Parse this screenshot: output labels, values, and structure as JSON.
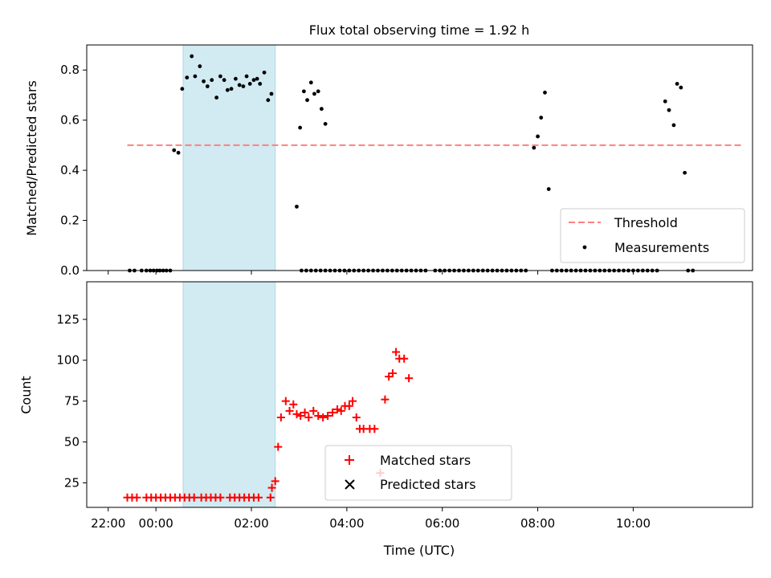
{
  "figure": {
    "title": "Flux total observing time = 1.92 h",
    "xlabel": "Time (UTC)",
    "xlim": [
      -1.45,
      12.5
    ],
    "xticks": [
      {
        "v": -1,
        "label": "22:00"
      },
      {
        "v": 0,
        "label": "00:00"
      },
      {
        "v": 2,
        "label": "02:00"
      },
      {
        "v": 4,
        "label": "04:00"
      },
      {
        "v": 6,
        "label": "06:00"
      },
      {
        "v": 8,
        "label": "08:00"
      },
      {
        "v": 10,
        "label": "10:00"
      }
    ],
    "shaded_span": [
      0.57,
      2.5
    ],
    "colors": {
      "threshold": "#ff7f7f",
      "span": "#add8e6",
      "matched": "#ff0000",
      "predicted": "#000000",
      "measurements": "#000000"
    }
  },
  "chart_data": [
    {
      "type": "scatter",
      "ylabel": "Matched/Predicted stars",
      "ylim": [
        0,
        0.9
      ],
      "yticks": [
        {
          "v": 0,
          "label": "0.0"
        },
        {
          "v": 0.2,
          "label": "0.2"
        },
        {
          "v": 0.4,
          "label": "0.4"
        },
        {
          "v": 0.6,
          "label": "0.6"
        },
        {
          "v": 0.8,
          "label": "0.8"
        }
      ],
      "threshold": {
        "y": 0.5,
        "x": [
          -0.6,
          12.3
        ]
      },
      "legend": {
        "position": "lower right",
        "entries": [
          "Threshold",
          "Measurements"
        ]
      },
      "series": [
        {
          "name": "Measurements",
          "points": [
            [
              -0.55,
              0
            ],
            [
              -0.45,
              0
            ],
            [
              -0.3,
              0
            ],
            [
              -0.2,
              0
            ],
            [
              -0.12,
              0
            ],
            [
              -0.05,
              0
            ],
            [
              0.02,
              0
            ],
            [
              0.08,
              0
            ],
            [
              0.15,
              0
            ],
            [
              0.22,
              0
            ],
            [
              0.3,
              0
            ],
            [
              0.38,
              0.48
            ],
            [
              0.47,
              0.47
            ],
            [
              0.55,
              0.725
            ],
            [
              0.65,
              0.77
            ],
            [
              0.75,
              0.855
            ],
            [
              0.82,
              0.775
            ],
            [
              0.92,
              0.815
            ],
            [
              1.0,
              0.755
            ],
            [
              1.08,
              0.735
            ],
            [
              1.17,
              0.76
            ],
            [
              1.27,
              0.69
            ],
            [
              1.35,
              0.775
            ],
            [
              1.43,
              0.76
            ],
            [
              1.5,
              0.72
            ],
            [
              1.58,
              0.725
            ],
            [
              1.67,
              0.765
            ],
            [
              1.75,
              0.74
            ],
            [
              1.83,
              0.735
            ],
            [
              1.9,
              0.775
            ],
            [
              1.97,
              0.745
            ],
            [
              2.05,
              0.76
            ],
            [
              2.12,
              0.765
            ],
            [
              2.18,
              0.745
            ],
            [
              2.27,
              0.79
            ],
            [
              2.35,
              0.68
            ],
            [
              2.42,
              0.705
            ],
            [
              2.95,
              0.255
            ],
            [
              3.02,
              0.57
            ],
            [
              3.1,
              0.715
            ],
            [
              3.17,
              0.68
            ],
            [
              3.25,
              0.75
            ],
            [
              3.32,
              0.705
            ],
            [
              3.4,
              0.715
            ],
            [
              3.47,
              0.645
            ],
            [
              3.55,
              0.585
            ],
            [
              3.05,
              0
            ],
            [
              3.15,
              0
            ],
            [
              3.25,
              0
            ],
            [
              3.35,
              0
            ],
            [
              3.45,
              0
            ],
            [
              3.55,
              0
            ],
            [
              3.65,
              0
            ],
            [
              3.75,
              0
            ],
            [
              3.85,
              0
            ],
            [
              3.95,
              0
            ],
            [
              4.05,
              0
            ],
            [
              4.15,
              0
            ],
            [
              4.25,
              0
            ],
            [
              4.35,
              0
            ],
            [
              4.45,
              0
            ],
            [
              4.55,
              0
            ],
            [
              4.65,
              0
            ],
            [
              4.75,
              0
            ],
            [
              4.85,
              0
            ],
            [
              4.95,
              0
            ],
            [
              5.05,
              0
            ],
            [
              5.15,
              0
            ],
            [
              5.25,
              0
            ],
            [
              5.35,
              0
            ],
            [
              5.45,
              0
            ],
            [
              5.55,
              0
            ],
            [
              5.65,
              0
            ],
            [
              5.85,
              0
            ],
            [
              5.95,
              0
            ],
            [
              6.05,
              0
            ],
            [
              6.15,
              0
            ],
            [
              6.25,
              0
            ],
            [
              6.35,
              0
            ],
            [
              6.45,
              0
            ],
            [
              6.55,
              0
            ],
            [
              6.65,
              0
            ],
            [
              6.75,
              0
            ],
            [
              6.85,
              0
            ],
            [
              6.95,
              0
            ],
            [
              7.05,
              0
            ],
            [
              7.15,
              0
            ],
            [
              7.25,
              0
            ],
            [
              7.35,
              0
            ],
            [
              7.45,
              0
            ],
            [
              7.55,
              0
            ],
            [
              7.65,
              0
            ],
            [
              7.75,
              0
            ],
            [
              7.92,
              0.49
            ],
            [
              8.0,
              0.535
            ],
            [
              8.07,
              0.61
            ],
            [
              8.15,
              0.71
            ],
            [
              8.23,
              0.325
            ],
            [
              8.3,
              0
            ],
            [
              8.4,
              0
            ],
            [
              8.5,
              0
            ],
            [
              8.6,
              0
            ],
            [
              8.7,
              0
            ],
            [
              8.8,
              0
            ],
            [
              8.9,
              0
            ],
            [
              9.0,
              0
            ],
            [
              9.1,
              0
            ],
            [
              9.2,
              0
            ],
            [
              9.3,
              0
            ],
            [
              9.4,
              0
            ],
            [
              9.5,
              0
            ],
            [
              9.6,
              0
            ],
            [
              9.7,
              0
            ],
            [
              9.8,
              0
            ],
            [
              9.9,
              0
            ],
            [
              10.0,
              0
            ],
            [
              10.1,
              0
            ],
            [
              10.2,
              0
            ],
            [
              10.3,
              0
            ],
            [
              10.4,
              0
            ],
            [
              10.5,
              0
            ],
            [
              10.67,
              0.675
            ],
            [
              10.75,
              0.64
            ],
            [
              10.85,
              0.58
            ],
            [
              10.92,
              0.745
            ],
            [
              11.0,
              0.73
            ],
            [
              11.08,
              0.39
            ],
            [
              11.15,
              0
            ],
            [
              11.25,
              0
            ]
          ]
        }
      ]
    },
    {
      "type": "scatter",
      "ylabel": "Count",
      "ylim": [
        10,
        148
      ],
      "yticks": [
        {
          "v": 25,
          "label": "25"
        },
        {
          "v": 50,
          "label": "50"
        },
        {
          "v": 75,
          "label": "75"
        },
        {
          "v": 100,
          "label": "100"
        },
        {
          "v": 125,
          "label": "125"
        }
      ],
      "legend": {
        "position": "lower center",
        "entries": [
          "Matched stars",
          "Predicted stars"
        ]
      },
      "series": [
        {
          "name": "Matched stars",
          "marker": "plus",
          "points": [
            [
              -0.6,
              16
            ],
            [
              -0.5,
              16
            ],
            [
              -0.4,
              16
            ],
            [
              -0.2,
              16
            ],
            [
              -0.1,
              16
            ],
            [
              0.0,
              16
            ],
            [
              0.1,
              16
            ],
            [
              0.2,
              16
            ],
            [
              0.3,
              16
            ],
            [
              0.4,
              16
            ],
            [
              0.5,
              16
            ],
            [
              0.6,
              16
            ],
            [
              0.7,
              16
            ],
            [
              0.8,
              16
            ],
            [
              0.95,
              16
            ],
            [
              1.05,
              16
            ],
            [
              1.15,
              16
            ],
            [
              1.25,
              16
            ],
            [
              1.35,
              16
            ],
            [
              1.55,
              16
            ],
            [
              1.65,
              16
            ],
            [
              1.75,
              16
            ],
            [
              1.85,
              16
            ],
            [
              1.95,
              16
            ],
            [
              2.05,
              16
            ],
            [
              2.15,
              16
            ],
            [
              2.4,
              16
            ],
            [
              2.43,
              22
            ],
            [
              2.5,
              26
            ],
            [
              2.56,
              47
            ],
            [
              2.62,
              65
            ],
            [
              2.72,
              75
            ],
            [
              2.8,
              69
            ],
            [
              2.88,
              73
            ],
            [
              2.95,
              67
            ],
            [
              3.03,
              66
            ],
            [
              3.12,
              68
            ],
            [
              3.2,
              65
            ],
            [
              3.3,
              69
            ],
            [
              3.4,
              66
            ],
            [
              3.5,
              65
            ],
            [
              3.6,
              66
            ],
            [
              3.7,
              68
            ],
            [
              3.8,
              70
            ],
            [
              3.88,
              69
            ],
            [
              3.96,
              72
            ],
            [
              4.05,
              72
            ],
            [
              4.12,
              75
            ],
            [
              4.2,
              65
            ],
            [
              4.27,
              58
            ],
            [
              4.35,
              58
            ],
            [
              4.48,
              58
            ],
            [
              4.58,
              58
            ],
            [
              4.7,
              31
            ],
            [
              4.8,
              76
            ],
            [
              4.88,
              90
            ],
            [
              4.96,
              92
            ],
            [
              5.03,
              105
            ],
            [
              5.1,
              101
            ],
            [
              5.2,
              101
            ],
            [
              5.3,
              89
            ]
          ]
        }
      ]
    }
  ]
}
